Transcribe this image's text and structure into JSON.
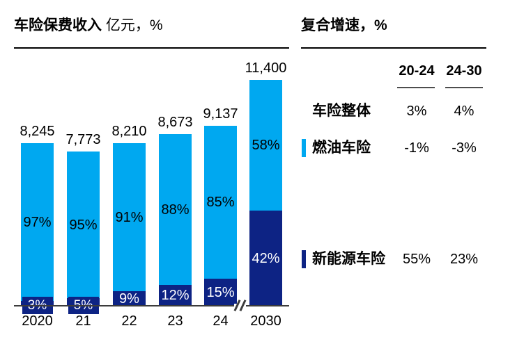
{
  "colors": {
    "light_blue": "#00a8f0",
    "navy": "#0d2384",
    "axis_gray": "#3c3c3c",
    "text": "#000000"
  },
  "left_chart": {
    "title": "车险保费收入",
    "title_unit": "亿元，%",
    "bars": [
      {
        "year": "2020",
        "total": "8,245",
        "light_label": "97%",
        "dark_label": "3%"
      },
      {
        "year": "21",
        "total": "7,773",
        "light_label": "95%",
        "dark_label": "5%"
      },
      {
        "year": "22",
        "total": "8,210",
        "light_label": "91%",
        "dark_label": "9%"
      },
      {
        "year": "23",
        "total": "8,673",
        "light_label": "88%",
        "dark_label": "12%"
      },
      {
        "year": "24",
        "total": "9,137",
        "light_label": "85%",
        "dark_label": "15%"
      },
      {
        "year": "2030",
        "total": "11,400",
        "light_label": "58%",
        "dark_label": "42%"
      }
    ]
  },
  "right_panel": {
    "title": "复合增速，%",
    "col_headers": [
      "20-24",
      "24-30"
    ],
    "rows": [
      {
        "label": "车险整体",
        "marker": "none",
        "values": [
          "3%",
          "4%"
        ]
      },
      {
        "label": "燃油车险",
        "marker": "light_blue",
        "values": [
          "-1%",
          "-3%"
        ]
      },
      {
        "label": "新能源车险",
        "marker": "navy",
        "values": [
          "55%",
          "23%"
        ]
      }
    ]
  },
  "chart_data": {
    "type": "bar",
    "stacked": true,
    "title": "车险保费收入 亿元，%",
    "categories": [
      "2020",
      "21",
      "22",
      "23",
      "24",
      "2030"
    ],
    "totals": [
      8245,
      7773,
      8210,
      8673,
      9137,
      11400
    ],
    "series": [
      {
        "name": "燃油车险",
        "share_pct": [
          97,
          95,
          91,
          88,
          85,
          58
        ],
        "color": "#00a8f0"
      },
      {
        "name": "新能源车险",
        "share_pct": [
          3,
          5,
          9,
          12,
          15,
          42
        ],
        "color": "#0d2384"
      }
    ],
    "axis_break_between": [
      "24",
      "2030"
    ],
    "legend_position": "right-table-markers",
    "grid": false,
    "growth_table": {
      "title": "复合增速，%",
      "columns": [
        "20-24",
        "24-30"
      ],
      "rows": [
        {
          "name": "车险整体",
          "values": [
            "3%",
            "4%"
          ]
        },
        {
          "name": "燃油车险",
          "values": [
            "-1%",
            "-3%"
          ]
        },
        {
          "name": "新能源车险",
          "values": [
            "55%",
            "23%"
          ]
        }
      ]
    }
  }
}
